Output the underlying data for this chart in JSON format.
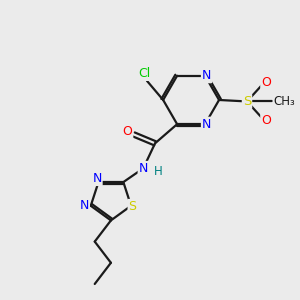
{
  "bg_color": "#ebebeb",
  "bond_color": "#1a1a1a",
  "atom_colors": {
    "N": "#0000ff",
    "O": "#ff0000",
    "S": "#cccc00",
    "Cl": "#00cc00",
    "H": "#008080"
  },
  "figsize": [
    3.0,
    3.0
  ],
  "dpi": 100
}
